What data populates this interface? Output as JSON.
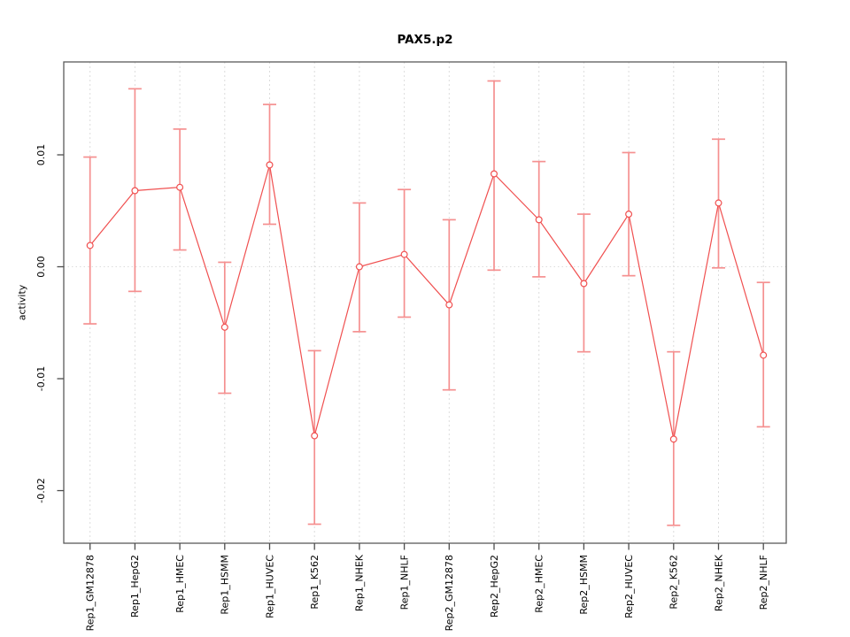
{
  "title": "PAX5.p2",
  "chart_data": {
    "type": "line",
    "subtype": "points-with-error-bars",
    "title": "PAX5.p2",
    "xlabel": "",
    "ylabel": "activity",
    "legend": "none",
    "grid": {
      "vertical_dashed_per_category": true,
      "horizontal_dotted_zero_line": true
    },
    "marker": "open-circle",
    "categories": [
      "Rep1_GM12878",
      "Rep1_HepG2",
      "Rep1_HMEC",
      "Rep1_HSMM",
      "Rep1_HUVEC",
      "Rep1_K562",
      "Rep1_NHEK",
      "Rep1_NHLF",
      "Rep2_GM12878",
      "Rep2_HepG2",
      "Rep2_HMEC",
      "Rep2_HSMM",
      "Rep2_HUVEC",
      "Rep2_K562",
      "Rep2_NHEK",
      "Rep2_NHLF"
    ],
    "series": [
      {
        "name": "activity",
        "values": [
          0.0019,
          0.0068,
          0.0071,
          -0.0054,
          0.0091,
          -0.0151,
          0.0,
          0.0011,
          -0.0034,
          0.0083,
          0.0042,
          -0.0015,
          0.0047,
          -0.0154,
          0.0057,
          -0.0079
        ],
        "upper": [
          0.0098,
          0.0159,
          0.0123,
          0.0004,
          0.0145,
          -0.0075,
          0.0057,
          0.0069,
          0.0042,
          0.0166,
          0.0094,
          0.0047,
          0.0102,
          -0.0076,
          0.0114,
          -0.0014
        ],
        "lower": [
          -0.0051,
          -0.0022,
          0.0015,
          -0.0113,
          0.0038,
          -0.023,
          -0.0058,
          -0.0045,
          -0.011,
          -0.0003,
          -0.0009,
          -0.0076,
          -0.0008,
          -0.0231,
          -0.0001,
          -0.0143
        ]
      }
    ],
    "ylim": [
      -0.0247,
      0.0183
    ],
    "yticks": [
      {
        "value": 0.01,
        "label": "0.01"
      },
      {
        "value": 0.0,
        "label": "0.00"
      },
      {
        "value": -0.01,
        "label": "-0.01"
      },
      {
        "value": -0.02,
        "label": "-0.02"
      }
    ],
    "colors": {
      "line": "#f05050",
      "marker": "#f05050",
      "error_bar": "#f59090",
      "grid": "#dcdcdc",
      "box": "#5a5a5a",
      "tick": "#4d4d4d",
      "text": "#000000",
      "background": "#ffffff"
    }
  }
}
